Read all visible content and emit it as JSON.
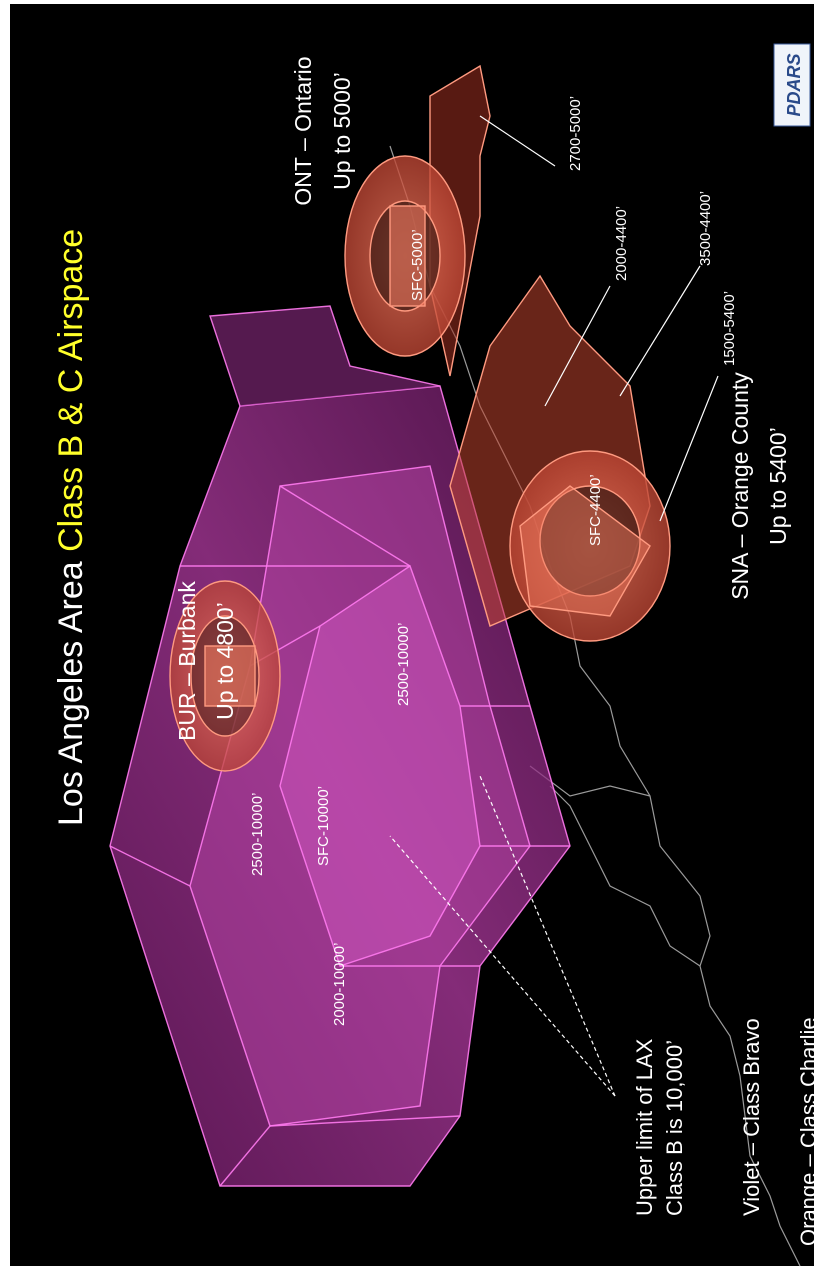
{
  "title": {
    "part1": "Los Angeles Area ",
    "part2": "Class B & C Airspace"
  },
  "airports": {
    "bur": {
      "name": "BUR – Burbank",
      "limit": "Up to 4800’"
    },
    "ont": {
      "name": "ONT – Ontario",
      "limit": "Up to 5000’"
    },
    "sna": {
      "name": "SNA – Orange County",
      "limit": "Up to 5400’"
    }
  },
  "altitude_labels": {
    "lax_2500_10000_a": "2500-10000’",
    "lax_sfc_10000": "SFC-10000’",
    "lax_2000_10000": "2000-10000’",
    "lax_2500_10000_b": "2500-10000’",
    "ont_sfc_5000": "SFC-5000’",
    "ont_2700_5000": "2700-5000’",
    "sna_2000_4400": "2000-4400’",
    "sna_3500_4400": "3500-4400’",
    "sna_1500_5400": "1500-5400’",
    "sna_sfc_4400": "SFC-4400’"
  },
  "lax_note": {
    "line1": "Upper limit of LAX",
    "line2": "Class B is 10,000’"
  },
  "legend": {
    "violet": "Violet – Class Bravo",
    "orange": "Orange – Class Charlie"
  },
  "logo": "PDARS",
  "colors": {
    "title_white": "#ffffff",
    "title_yellow": "#ffff2a",
    "class_b": "#c040b0",
    "class_c": "#e06048",
    "background": "#000000"
  }
}
